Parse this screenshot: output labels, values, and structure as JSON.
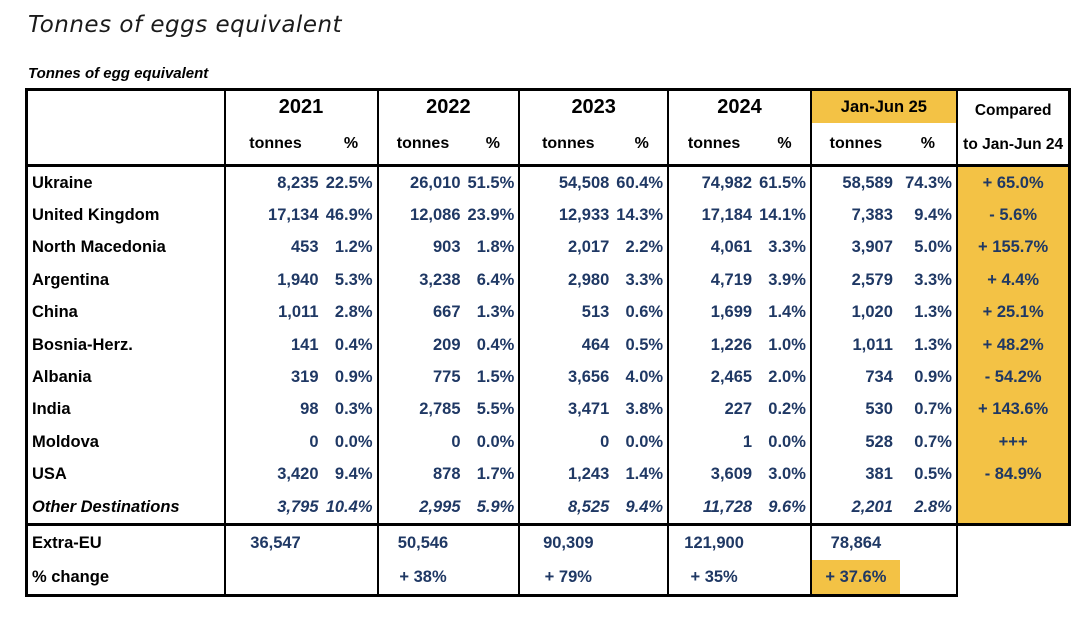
{
  "page_title": "Tonnes of eggs equivalent",
  "table_caption": "Tonnes of egg equivalent",
  "colors": {
    "highlight": "#F3C245",
    "number_blue": "#1F3864",
    "border": "#000000"
  },
  "chart_data": {
    "type": "table",
    "title": "Tonnes of eggs equivalent",
    "caption": "Tonnes of egg equivalent",
    "year_groups": [
      {
        "label": "2021",
        "highlight": false
      },
      {
        "label": "2022",
        "highlight": false
      },
      {
        "label": "2023",
        "highlight": false
      },
      {
        "label": "2024",
        "highlight": false
      },
      {
        "label": "Jan-Jun 25",
        "highlight": true
      }
    ],
    "subheaders": {
      "tonnes": "tonnes",
      "percent": "%"
    },
    "compared_header": {
      "line1": "Compared",
      "line2": "to Jan-Jun 24"
    },
    "rows": [
      {
        "label": "Ukraine",
        "italic": false,
        "cells": [
          [
            "8,235",
            "22.5%"
          ],
          [
            "26,010",
            "51.5%"
          ],
          [
            "54,508",
            "60.4%"
          ],
          [
            "74,982",
            "61.5%"
          ],
          [
            "58,589",
            "74.3%"
          ]
        ],
        "compared": "+ 65.0%"
      },
      {
        "label": "United Kingdom",
        "italic": false,
        "cells": [
          [
            "17,134",
            "46.9%"
          ],
          [
            "12,086",
            "23.9%"
          ],
          [
            "12,933",
            "14.3%"
          ],
          [
            "17,184",
            "14.1%"
          ],
          [
            "7,383",
            "9.4%"
          ]
        ],
        "compared": "- 5.6%"
      },
      {
        "label": "North Macedonia",
        "italic": false,
        "cells": [
          [
            "453",
            "1.2%"
          ],
          [
            "903",
            "1.8%"
          ],
          [
            "2,017",
            "2.2%"
          ],
          [
            "4,061",
            "3.3%"
          ],
          [
            "3,907",
            "5.0%"
          ]
        ],
        "compared": "+ 155.7%"
      },
      {
        "label": "Argentina",
        "italic": false,
        "cells": [
          [
            "1,940",
            "5.3%"
          ],
          [
            "3,238",
            "6.4%"
          ],
          [
            "2,980",
            "3.3%"
          ],
          [
            "4,719",
            "3.9%"
          ],
          [
            "2,579",
            "3.3%"
          ]
        ],
        "compared": "+ 4.4%"
      },
      {
        "label": "China",
        "italic": false,
        "cells": [
          [
            "1,011",
            "2.8%"
          ],
          [
            "667",
            "1.3%"
          ],
          [
            "513",
            "0.6%"
          ],
          [
            "1,699",
            "1.4%"
          ],
          [
            "1,020",
            "1.3%"
          ]
        ],
        "compared": "+ 25.1%"
      },
      {
        "label": "Bosnia-Herz.",
        "italic": false,
        "cells": [
          [
            "141",
            "0.4%"
          ],
          [
            "209",
            "0.4%"
          ],
          [
            "464",
            "0.5%"
          ],
          [
            "1,226",
            "1.0%"
          ],
          [
            "1,011",
            "1.3%"
          ]
        ],
        "compared": "+ 48.2%"
      },
      {
        "label": "Albania",
        "italic": false,
        "cells": [
          [
            "319",
            "0.9%"
          ],
          [
            "775",
            "1.5%"
          ],
          [
            "3,656",
            "4.0%"
          ],
          [
            "2,465",
            "2.0%"
          ],
          [
            "734",
            "0.9%"
          ]
        ],
        "compared": "- 54.2%"
      },
      {
        "label": "India",
        "italic": false,
        "cells": [
          [
            "98",
            "0.3%"
          ],
          [
            "2,785",
            "5.5%"
          ],
          [
            "3,471",
            "3.8%"
          ],
          [
            "227",
            "0.2%"
          ],
          [
            "530",
            "0.7%"
          ]
        ],
        "compared": "+ 143.6%"
      },
      {
        "label": "Moldova",
        "italic": false,
        "cells": [
          [
            "0",
            "0.0%"
          ],
          [
            "0",
            "0.0%"
          ],
          [
            "0",
            "0.0%"
          ],
          [
            "1",
            "0.0%"
          ],
          [
            "528",
            "0.7%"
          ]
        ],
        "compared": "+++"
      },
      {
        "label": "USA",
        "italic": false,
        "cells": [
          [
            "3,420",
            "9.4%"
          ],
          [
            "878",
            "1.7%"
          ],
          [
            "1,243",
            "1.4%"
          ],
          [
            "3,609",
            "3.0%"
          ],
          [
            "381",
            "0.5%"
          ]
        ],
        "compared": "- 84.9%"
      },
      {
        "label": "Other Destinations",
        "italic": true,
        "cells": [
          [
            "3,795",
            "10.4%"
          ],
          [
            "2,995",
            "5.9%"
          ],
          [
            "8,525",
            "9.4%"
          ],
          [
            "11,728",
            "9.6%"
          ],
          [
            "2,201",
            "2.8%"
          ]
        ],
        "compared": ""
      }
    ],
    "summary_rows": [
      {
        "label": "Extra-EU",
        "values": [
          "36,547",
          "50,546",
          "90,309",
          "121,900",
          "78,864"
        ],
        "highlight_index": -1
      },
      {
        "label": "% change",
        "values": [
          "",
          "+ 38%",
          "+ 79%",
          "+ 35%",
          "+ 37.6%"
        ],
        "highlight_index": 4
      }
    ]
  },
  "layout": {
    "col_widths": {
      "label": 198,
      "groups": [
        [
          101,
          52
        ],
        [
          90,
          49
        ],
        [
          97,
          51
        ],
        [
          91,
          50
        ],
        [
          89,
          57
        ]
      ],
      "compared": 113
    }
  }
}
